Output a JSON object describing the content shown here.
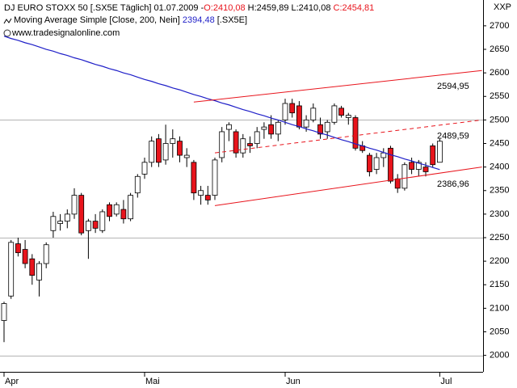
{
  "chart_data": {
    "type": "candlestick",
    "header": {
      "title": "DJ EURO STOXX 50 [.SX5E  Täglich]",
      "date": "01.07.2009 -",
      "open_label": "O:2410,08",
      "high_label": "H:2459,89",
      "low_label": "L:2410,08",
      "close_label": "C:2454,81"
    },
    "indicator": {
      "name": "Moving Average Simple [Close, 200, Nein]",
      "value_label": "2394,48",
      "symbol": "[.SX5E]"
    },
    "source": "www.tradesignalonline.com",
    "corner_label": "XXP",
    "categories": [
      "Apr",
      null,
      null,
      null,
      null,
      null,
      null,
      null,
      null,
      null,
      null,
      null,
      null,
      null,
      null,
      null,
      null,
      null,
      null,
      null,
      "Mai",
      null,
      null,
      null,
      null,
      null,
      null,
      null,
      null,
      null,
      null,
      null,
      null,
      null,
      null,
      null,
      null,
      null,
      null,
      null,
      "Jun",
      null,
      null,
      null,
      null,
      null,
      null,
      null,
      null,
      null,
      null,
      null,
      null,
      null,
      null,
      null,
      null,
      null,
      null,
      null,
      null,
      null,
      "Jul"
    ],
    "open": [
      2074,
      2126,
      2237,
      2225,
      2205,
      2160,
      2195,
      2265,
      2280,
      2285,
      2300,
      2340,
      2265,
      2285,
      2265,
      2320,
      2300,
      2310,
      2290,
      2345,
      2385,
      2410,
      2460,
      2415,
      2450,
      2455,
      2420,
      2410,
      2340,
      2340,
      2340,
      2420,
      2480,
      2475,
      2430,
      2450,
      2450,
      2480,
      2490,
      2470,
      2500,
      2535,
      2530,
      2485,
      2500,
      2490,
      2475,
      2495,
      2525,
      2505,
      2505,
      2445,
      2425,
      2395,
      2420,
      2440,
      2375,
      2355,
      2410,
      2395,
      2400,
      2445,
      2410.08
    ],
    "high": [
      2114,
      2245,
      2250,
      2245,
      2215,
      2200,
      2240,
      2305,
      2300,
      2310,
      2355,
      2345,
      2290,
      2300,
      2310,
      2325,
      2325,
      2330,
      2345,
      2385,
      2420,
      2465,
      2470,
      2490,
      2480,
      2465,
      2440,
      2415,
      2360,
      2360,
      2420,
      2485,
      2495,
      2480,
      2470,
      2465,
      2485,
      2495,
      2510,
      2500,
      2545,
      2545,
      2540,
      2510,
      2535,
      2505,
      2500,
      2535,
      2530,
      2515,
      2510,
      2455,
      2430,
      2430,
      2440,
      2445,
      2385,
      2410,
      2420,
      2415,
      2410,
      2450,
      2459.89
    ],
    "low": [
      2028,
      2120,
      2210,
      2185,
      2150,
      2125,
      2185,
      2250,
      2265,
      2270,
      2290,
      2255,
      2205,
      2260,
      2260,
      2285,
      2295,
      2280,
      2285,
      2335,
      2375,
      2400,
      2400,
      2405,
      2420,
      2410,
      2400,
      2330,
      2320,
      2320,
      2330,
      2410,
      2455,
      2420,
      2420,
      2430,
      2440,
      2460,
      2460,
      2455,
      2490,
      2505,
      2480,
      2475,
      2495,
      2460,
      2460,
      2490,
      2505,
      2490,
      2435,
      2430,
      2380,
      2385,
      2400,
      2365,
      2345,
      2350,
      2385,
      2380,
      2380,
      2400,
      2410.08
    ],
    "close": [
      2110,
      2240,
      2218,
      2195,
      2170,
      2195,
      2235,
      2295,
      2285,
      2300,
      2340,
      2260,
      2285,
      2270,
      2305,
      2295,
      2320,
      2290,
      2340,
      2380,
      2410,
      2455,
      2410,
      2450,
      2460,
      2425,
      2425,
      2345,
      2350,
      2330,
      2415,
      2475,
      2490,
      2430,
      2460,
      2445,
      2475,
      2485,
      2470,
      2495,
      2535,
      2515,
      2485,
      2500,
      2525,
      2470,
      2495,
      2530,
      2510,
      2510,
      2440,
      2435,
      2390,
      2420,
      2430,
      2370,
      2355,
      2405,
      2395,
      2410,
      2390,
      2405,
      2454.81
    ],
    "up_color": "#ffffff",
    "down_color": "#e8141c",
    "moving_average": {
      "color": "#1f1fc8",
      "values": [
        2678,
        2673,
        2669,
        2664,
        2660,
        2655,
        2650,
        2646,
        2641,
        2637,
        2632,
        2628,
        2623,
        2618,
        2614,
        2609,
        2605,
        2600,
        2596,
        2591,
        2586,
        2582,
        2577,
        2573,
        2568,
        2564,
        2559,
        2554,
        2550,
        2545,
        2541,
        2536,
        2532,
        2527,
        2522,
        2518,
        2513,
        2509,
        2504,
        2500,
        2495,
        2490,
        2486,
        2481,
        2477,
        2472,
        2468,
        2463,
        2458,
        2454,
        2449,
        2445,
        2440,
        2436,
        2431,
        2426,
        2422,
        2417,
        2413,
        2408,
        2404,
        2399,
        2394.48
      ]
    },
    "trend_lines": [
      {
        "x": [
          27,
          68
        ],
        "y": [
          2538,
          2605
        ],
        "value": 2594.95,
        "value_label": "2594,95",
        "style": "solid",
        "color": "#e8141c"
      },
      {
        "x": [
          30,
          68
        ],
        "y": [
          2430,
          2500
        ],
        "value": 2489.59,
        "value_label": "2489,59",
        "style": "dashed",
        "color": "#e8141c"
      },
      {
        "x": [
          30,
          68
        ],
        "y": [
          2318,
          2400
        ],
        "value": 2386.96,
        "value_label": "2386,96",
        "style": "solid",
        "color": "#e8141c"
      }
    ],
    "ylim": [
      1965,
      2717
    ],
    "yticks": [
      2000,
      2050,
      2100,
      2150,
      2200,
      2250,
      2300,
      2350,
      2400,
      2450,
      2500,
      2550,
      2600,
      2650,
      2700
    ],
    "grid_values": [
      2000,
      2250,
      2500
    ]
  }
}
